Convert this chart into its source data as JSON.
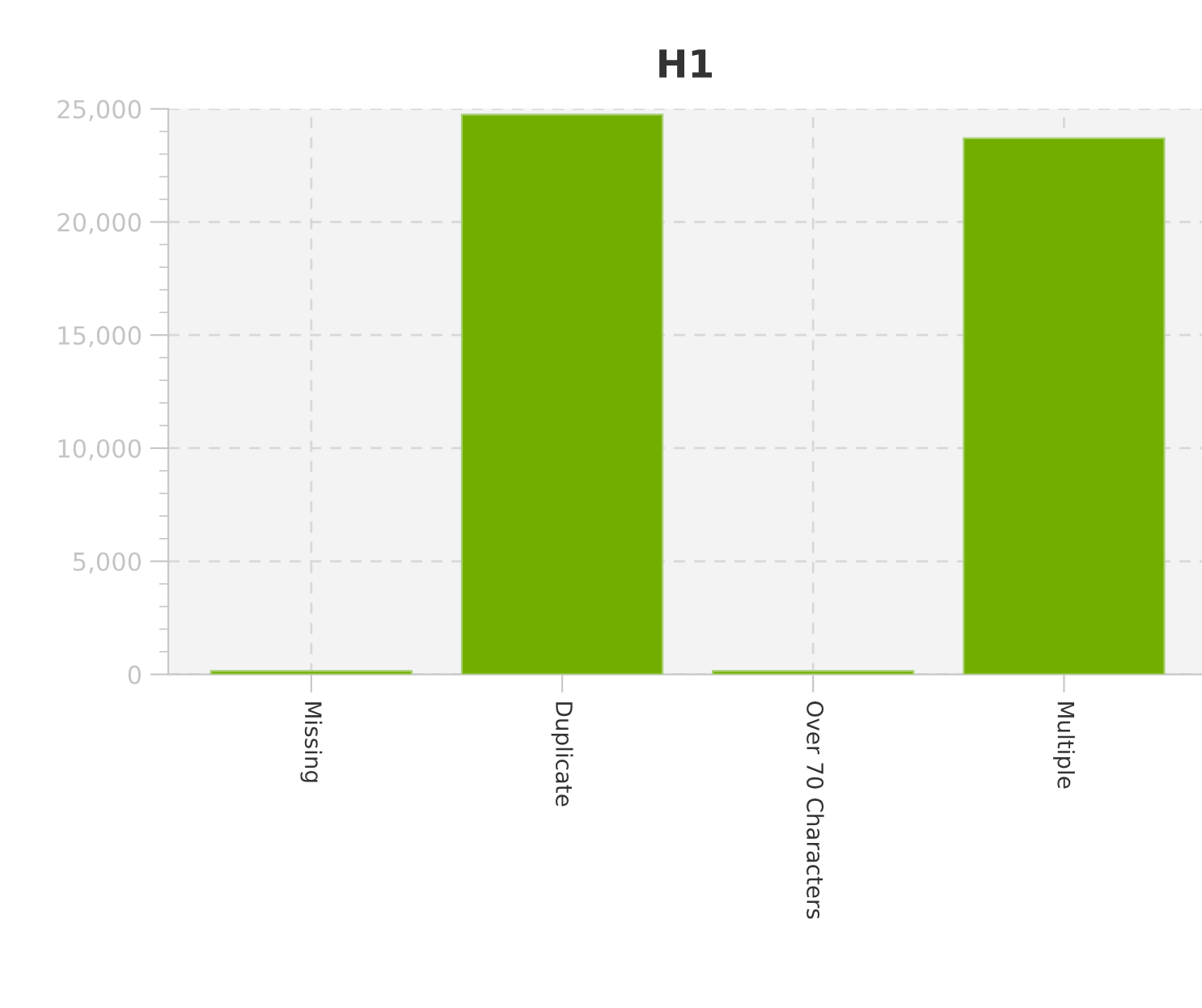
{
  "chart_data": {
    "type": "bar",
    "title": "H1",
    "categories": [
      "Missing",
      "Duplicate",
      "Over 70 Characters",
      "Multiple"
    ],
    "values": [
      150,
      24750,
      150,
      23700
    ],
    "color": "#72ae00",
    "ylim": [
      0,
      25000
    ],
    "yticks": [
      {
        "value": 0,
        "label": "0"
      },
      {
        "value": 5000,
        "label": "5,000"
      },
      {
        "value": 10000,
        "label": "10,000"
      },
      {
        "value": 15000,
        "label": "15,000"
      },
      {
        "value": 20000,
        "label": "20,000"
      },
      {
        "value": 25000,
        "label": "25,000"
      }
    ],
    "grid": true
  }
}
